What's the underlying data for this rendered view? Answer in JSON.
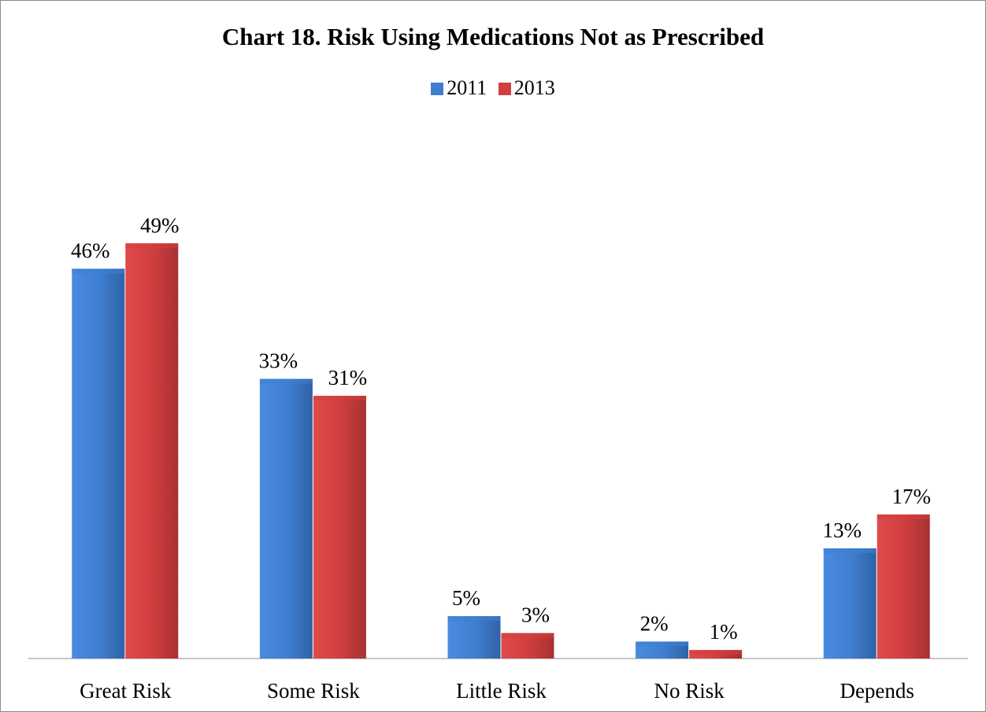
{
  "chart_data": {
    "type": "bar",
    "title": "Chart 18. Risk Using Medications Not as Prescribed",
    "categories": [
      "Great Risk",
      "Some Risk",
      "Little Risk",
      "No Risk",
      "Depends"
    ],
    "series": [
      {
        "name": "2011",
        "values": [
          46,
          33,
          5,
          2,
          13
        ],
        "labels": [
          "46%",
          "33%",
          "5%",
          "2%",
          "13%"
        ],
        "color": "#3f7fd1"
      },
      {
        "name": "2013",
        "values": [
          49,
          31,
          3,
          1,
          17
        ],
        "labels": [
          "49%",
          "31%",
          "3%",
          "1%",
          "17%"
        ],
        "color": "#d13f3f"
      }
    ],
    "ylim": [
      0,
      60
    ],
    "grid": false,
    "legend_position": "top"
  }
}
